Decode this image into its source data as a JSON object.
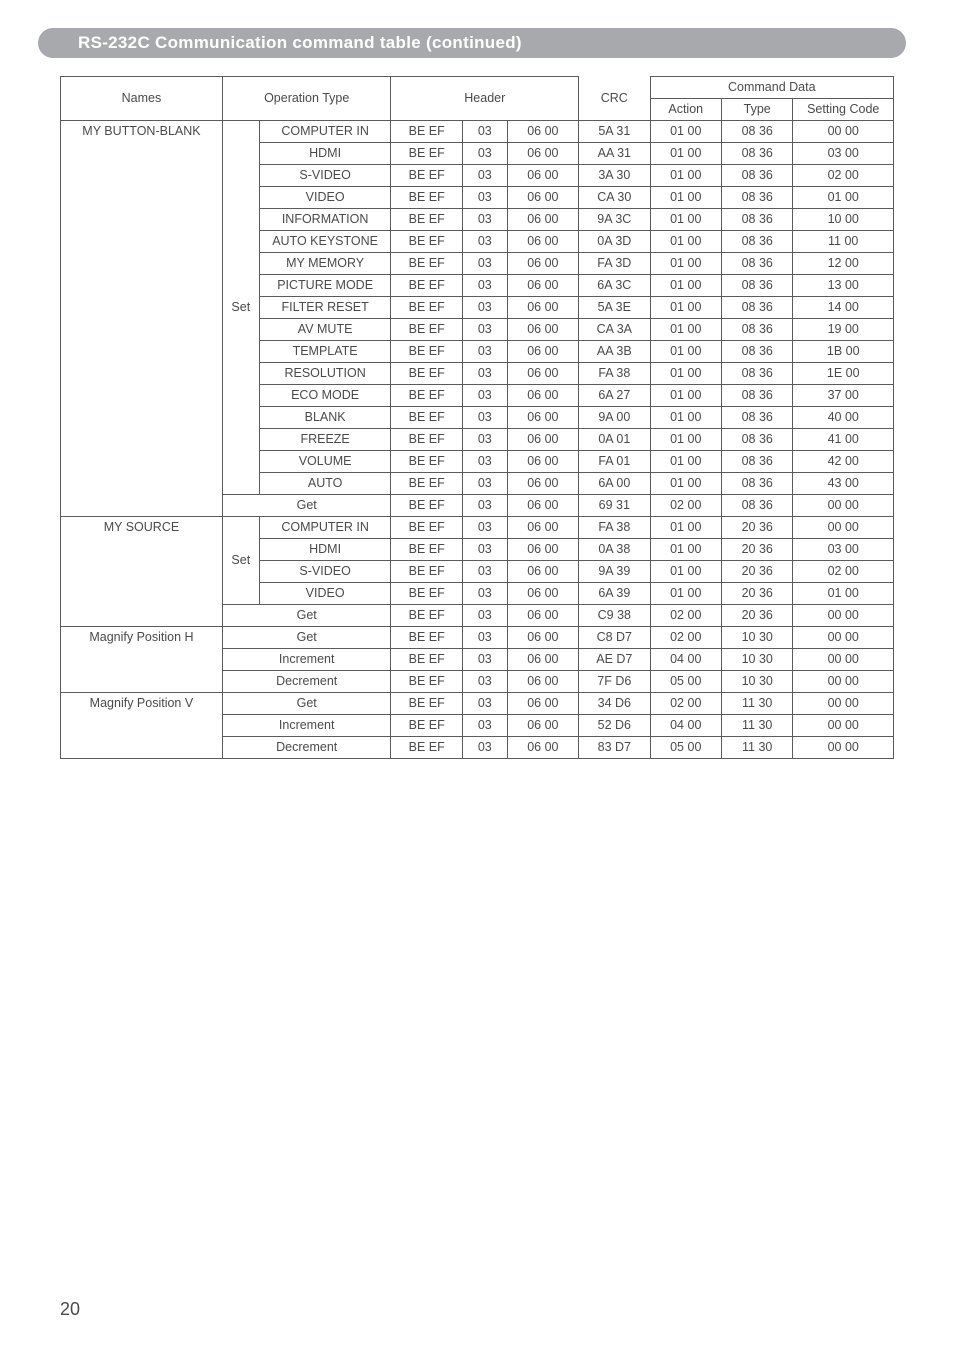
{
  "title": "RS-232C Communication command table (continued)",
  "page_number": "20",
  "colors": {
    "pill_bg": "#a7a9ac",
    "pill_text": "#ffffff",
    "border": "#5b5b5b",
    "text": "#4a4a4a",
    "page_bg": "#ffffff"
  },
  "header": {
    "names": "Names",
    "operation_type": "Operation Type",
    "header": "Header",
    "crc": "CRC",
    "command_data": "Command Data",
    "action": "Action",
    "type": "Type",
    "setting_code": "Setting Code"
  },
  "groups": [
    {
      "name": "MY BUTTON-BLANK",
      "rows": [
        {
          "set": "Set",
          "op": "COMPUTER IN",
          "h1": "BE  EF",
          "h2": "03",
          "h3": "06  00",
          "crc": "5A  31",
          "act": "01  00",
          "type": "08  36",
          "setc": "00  00"
        },
        {
          "set": "",
          "op": "HDMI",
          "h1": "BE  EF",
          "h2": "03",
          "h3": "06  00",
          "crc": "AA  31",
          "act": "01  00",
          "type": "08  36",
          "setc": "03  00"
        },
        {
          "set": "",
          "op": "S-VIDEO",
          "h1": "BE  EF",
          "h2": "03",
          "h3": "06  00",
          "crc": "3A  30",
          "act": "01  00",
          "type": "08  36",
          "setc": "02  00"
        },
        {
          "set": "",
          "op": "VIDEO",
          "h1": "BE  EF",
          "h2": "03",
          "h3": "06  00",
          "crc": "CA  30",
          "act": "01  00",
          "type": "08  36",
          "setc": "01  00"
        },
        {
          "set": "",
          "op": "INFORMATION",
          "h1": "BE  EF",
          "h2": "03",
          "h3": "06  00",
          "crc": "9A  3C",
          "act": "01  00",
          "type": "08  36",
          "setc": "10  00"
        },
        {
          "set": "",
          "op": "AUTO KEYSTONE",
          "h1": "BE  EF",
          "h2": "03",
          "h3": "06  00",
          "crc": "0A  3D",
          "act": "01  00",
          "type": "08  36",
          "setc": "11  00"
        },
        {
          "set": "",
          "op": "MY MEMORY",
          "h1": "BE  EF",
          "h2": "03",
          "h3": "06  00",
          "crc": "FA  3D",
          "act": "01  00",
          "type": "08  36",
          "setc": "12  00"
        },
        {
          "set": "",
          "op": "PICTURE MODE",
          "h1": "BE  EF",
          "h2": "03",
          "h3": "06  00",
          "crc": "6A  3C",
          "act": "01  00",
          "type": "08  36",
          "setc": "13  00"
        },
        {
          "set": "",
          "op": "FILTER RESET",
          "h1": "BE  EF",
          "h2": "03",
          "h3": "06  00",
          "crc": "5A  3E",
          "act": "01  00",
          "type": "08  36",
          "setc": "14  00"
        },
        {
          "set": "",
          "op": "AV MUTE",
          "h1": "BE  EF",
          "h2": "03",
          "h3": "06  00",
          "crc": "CA  3A",
          "act": "01  00",
          "type": "08  36",
          "setc": "19  00"
        },
        {
          "set": "",
          "op": "TEMPLATE",
          "h1": "BE  EF",
          "h2": "03",
          "h3": "06  00",
          "crc": "AA  3B",
          "act": "01  00",
          "type": "08  36",
          "setc": "1B  00"
        },
        {
          "set": "",
          "op": "RESOLUTION",
          "h1": "BE  EF",
          "h2": "03",
          "h3": "06  00",
          "crc": "FA  38",
          "act": "01  00",
          "type": "08  36",
          "setc": "1E  00"
        },
        {
          "set": "",
          "op": "ECO MODE",
          "h1": "BE  EF",
          "h2": "03",
          "h3": "06  00",
          "crc": "6A  27",
          "act": "01  00",
          "type": "08  36",
          "setc": "37  00"
        },
        {
          "set": "",
          "op": "BLANK",
          "h1": "BE  EF",
          "h2": "03",
          "h3": "06  00",
          "crc": "9A  00",
          "act": "01  00",
          "type": "08  36",
          "setc": "40  00"
        },
        {
          "set": "",
          "op": "FREEZE",
          "h1": "BE  EF",
          "h2": "03",
          "h3": "06  00",
          "crc": "0A  01",
          "act": "01  00",
          "type": "08  36",
          "setc": "41  00"
        },
        {
          "set": "",
          "op": "VOLUME",
          "h1": "BE  EF",
          "h2": "03",
          "h3": "06  00",
          "crc": "FA  01",
          "act": "01  00",
          "type": "08  36",
          "setc": "42  00"
        },
        {
          "set": "",
          "op": "AUTO",
          "h1": "BE  EF",
          "h2": "03",
          "h3": "06  00",
          "crc": "6A  00",
          "act": "01  00",
          "type": "08  36",
          "setc": "43  00"
        },
        {
          "set": "Get",
          "op": "",
          "colspan_op": true,
          "h1": "BE  EF",
          "h2": "03",
          "h3": "06  00",
          "crc": "69  31",
          "act": "02  00",
          "type": "08  36",
          "setc": "00  00"
        }
      ]
    },
    {
      "name": "MY SOURCE",
      "rows": [
        {
          "set": "Set",
          "op": "COMPUTER IN",
          "h1": "BE  EF",
          "h2": "03",
          "h3": "06  00",
          "crc": "FA  38",
          "act": "01  00",
          "type": "20  36",
          "setc": "00  00"
        },
        {
          "set": "",
          "op": "HDMI",
          "h1": "BE  EF",
          "h2": "03",
          "h3": "06  00",
          "crc": "0A  38",
          "act": "01  00",
          "type": "20  36",
          "setc": "03  00"
        },
        {
          "set": "",
          "op": "S-VIDEO",
          "h1": "BE  EF",
          "h2": "03",
          "h3": "06  00",
          "crc": "9A  39",
          "act": "01  00",
          "type": "20  36",
          "setc": "02  00"
        },
        {
          "set": "",
          "op": "VIDEO",
          "h1": "BE  EF",
          "h2": "03",
          "h3": "06  00",
          "crc": "6A  39",
          "act": "01  00",
          "type": "20  36",
          "setc": "01  00"
        },
        {
          "set": "Get",
          "op": "",
          "colspan_op": true,
          "h1": "BE  EF",
          "h2": "03",
          "h3": "06  00",
          "crc": "C9  38",
          "act": "02  00",
          "type": "20  36",
          "setc": "00  00"
        }
      ]
    },
    {
      "name": "Magnify Position H",
      "rows": [
        {
          "set": "Get",
          "op": "",
          "colspan_op": true,
          "h1": "BE  EF",
          "h2": "03",
          "h3": "06  00",
          "crc": "C8  D7",
          "act": "02  00",
          "type": "10  30",
          "setc": "00  00"
        },
        {
          "set": "Increment",
          "op": "",
          "colspan_op": true,
          "h1": "BE  EF",
          "h2": "03",
          "h3": "06  00",
          "crc": "AE  D7",
          "act": "04  00",
          "type": "10  30",
          "setc": "00  00"
        },
        {
          "set": "Decrement",
          "op": "",
          "colspan_op": true,
          "h1": "BE  EF",
          "h2": "03",
          "h3": "06  00",
          "crc": "7F  D6",
          "act": "05  00",
          "type": "10  30",
          "setc": "00  00"
        }
      ]
    },
    {
      "name": "Magnify Position V",
      "rows": [
        {
          "set": "Get",
          "op": "",
          "colspan_op": true,
          "h1": "BE  EF",
          "h2": "03",
          "h3": "06  00",
          "crc": "34  D6",
          "act": "02  00",
          "type": "11  30",
          "setc": "00  00"
        },
        {
          "set": "Increment",
          "op": "",
          "colspan_op": true,
          "h1": "BE  EF",
          "h2": "03",
          "h3": "06  00",
          "crc": "52  D6",
          "act": "04  00",
          "type": "11  30",
          "setc": "00  00"
        },
        {
          "set": "Decrement",
          "op": "",
          "colspan_op": true,
          "h1": "BE  EF",
          "h2": "03",
          "h3": "06  00",
          "crc": "83  D7",
          "act": "05  00",
          "type": "11  30",
          "setc": "00  00"
        }
      ]
    }
  ]
}
